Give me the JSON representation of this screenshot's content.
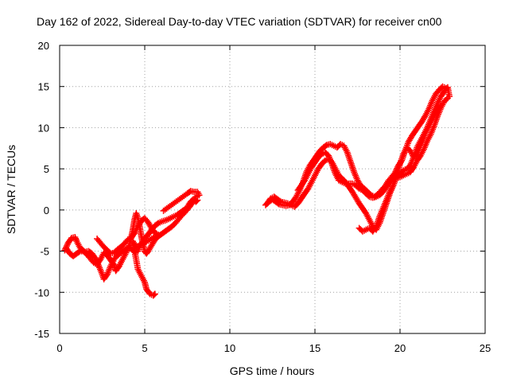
{
  "chart_data": {
    "type": "scatter",
    "title": "Day 162 of 2022, Sidereal Day-to-day VTEC variation (SDTVAR) for receiver cn00",
    "xlabel": "GPS time / hours",
    "ylabel": "SDTVAR / TECUs",
    "xlim": [
      0,
      25
    ],
    "ylim": [
      -15,
      20
    ],
    "x_ticks": [
      "0",
      "5",
      "10",
      "15",
      "20",
      "25"
    ],
    "y_ticks": [
      "-15",
      "-10",
      "-5",
      "0",
      "5",
      "10",
      "15",
      "20"
    ],
    "grid": true,
    "marker": "plus",
    "color": "#ff0000",
    "series": [
      {
        "points": [
          [
            0.3,
            -4.9
          ],
          [
            0.5,
            -4.0
          ],
          [
            0.7,
            -3.4
          ],
          [
            0.9,
            -3.3
          ],
          [
            1.0,
            -3.8
          ],
          [
            1.2,
            -4.6
          ],
          [
            1.5,
            -5.1
          ],
          [
            1.7,
            -5.0
          ],
          [
            1.9,
            -5.3
          ],
          [
            2.1,
            -5.9
          ],
          [
            2.3,
            -6.8
          ],
          [
            2.5,
            -7.8
          ],
          [
            2.6,
            -8.4
          ],
          [
            2.8,
            -7.8
          ],
          [
            3.0,
            -6.8
          ],
          [
            3.2,
            -6.0
          ],
          [
            3.4,
            -5.5
          ],
          [
            3.6,
            -5.2
          ],
          [
            3.8,
            -4.9
          ],
          [
            4.0,
            -4.6
          ],
          [
            4.2,
            -4.7
          ],
          [
            4.4,
            -5.1
          ],
          [
            4.6,
            -5.0
          ],
          [
            4.7,
            -4.4
          ],
          [
            4.9,
            -3.8
          ],
          [
            5.0,
            -3.4
          ],
          [
            5.2,
            -3.0
          ],
          [
            5.4,
            -2.4
          ],
          [
            5.6,
            -1.9
          ],
          [
            5.8,
            -1.6
          ],
          [
            6.0,
            -1.4
          ],
          [
            6.3,
            -1.2
          ],
          [
            6.5,
            -1.0
          ],
          [
            6.7,
            -0.8
          ],
          [
            6.9,
            -0.6
          ],
          [
            7.1,
            -0.3
          ],
          [
            7.3,
            0.0
          ],
          [
            7.5,
            0.3
          ],
          [
            7.6,
            0.7
          ],
          [
            7.7,
            1.0
          ],
          [
            7.8,
            1.2
          ],
          [
            7.9,
            1.3
          ],
          [
            8.0,
            1.0
          ],
          [
            8.1,
            1.2
          ]
        ]
      },
      {
        "points": [
          [
            0.4,
            -4.7
          ],
          [
            0.6,
            -5.3
          ],
          [
            0.8,
            -5.6
          ],
          [
            1.0,
            -5.3
          ],
          [
            1.2,
            -5.0
          ],
          [
            1.4,
            -5.0
          ],
          [
            1.6,
            -5.4
          ],
          [
            1.8,
            -5.9
          ],
          [
            2.0,
            -6.4
          ],
          [
            2.2,
            -6.6
          ],
          [
            2.4,
            -6.0
          ],
          [
            2.6,
            -5.2
          ],
          [
            2.8,
            -5.5
          ],
          [
            3.0,
            -6.1
          ],
          [
            3.2,
            -6.7
          ],
          [
            3.3,
            -7.4
          ],
          [
            3.5,
            -6.8
          ],
          [
            3.7,
            -6.0
          ],
          [
            3.9,
            -5.2
          ],
          [
            4.1,
            -4.3
          ],
          [
            4.2,
            -3.4
          ],
          [
            4.3,
            -2.4
          ],
          [
            4.4,
            -1.2
          ],
          [
            4.5,
            -0.4
          ],
          [
            4.6,
            -1.0
          ],
          [
            4.7,
            -2.0
          ],
          [
            4.8,
            -3.2
          ],
          [
            4.9,
            -4.2
          ],
          [
            5.0,
            -5.0
          ],
          [
            5.1,
            -5.3
          ],
          [
            5.2,
            -5.0
          ],
          [
            5.4,
            -4.3
          ],
          [
            5.6,
            -3.6
          ],
          [
            5.8,
            -3.2
          ],
          [
            6.0,
            -2.9
          ],
          [
            6.2,
            -2.6
          ],
          [
            6.4,
            -2.3
          ],
          [
            6.6,
            -2.0
          ],
          [
            6.8,
            -1.6
          ],
          [
            7.0,
            -1.1
          ],
          [
            7.2,
            -0.6
          ],
          [
            7.4,
            -0.2
          ],
          [
            7.6,
            0.3
          ],
          [
            7.8,
            0.9
          ],
          [
            8.0,
            1.6
          ],
          [
            8.2,
            1.8
          ],
          [
            8.1,
            2.2
          ],
          [
            7.9,
            2.2
          ],
          [
            7.7,
            2.3
          ],
          [
            7.5,
            2.0
          ],
          [
            6.1,
            -0.1
          ]
        ]
      },
      {
        "points": [
          [
            2.2,
            -3.5
          ],
          [
            2.4,
            -4.0
          ],
          [
            2.6,
            -4.5
          ],
          [
            2.8,
            -4.9
          ],
          [
            3.0,
            -5.3
          ],
          [
            3.2,
            -5.2
          ],
          [
            3.4,
            -4.8
          ],
          [
            3.6,
            -4.5
          ],
          [
            3.8,
            -4.1
          ],
          [
            4.0,
            -3.6
          ],
          [
            4.2,
            -3.4
          ],
          [
            4.4,
            -2.8
          ],
          [
            4.6,
            -2.0
          ],
          [
            4.8,
            -1.3
          ],
          [
            5.0,
            -1.0
          ],
          [
            5.2,
            -1.5
          ],
          [
            5.4,
            -2.2
          ],
          [
            5.6,
            -2.8
          ],
          [
            5.8,
            -3.0
          ],
          [
            4.8,
            -4.2
          ],
          [
            4.5,
            -4.5
          ],
          [
            4.3,
            -3.8
          ],
          [
            4.6,
            -7.2
          ],
          [
            4.8,
            -8.0
          ],
          [
            5.0,
            -8.8
          ],
          [
            5.1,
            -9.6
          ],
          [
            5.3,
            -10.2
          ],
          [
            5.5,
            -10.4
          ],
          [
            5.6,
            -10.2
          ]
        ]
      },
      {
        "points": [
          [
            12.1,
            0.6
          ],
          [
            12.3,
            1.0
          ],
          [
            12.5,
            1.3
          ],
          [
            12.7,
            1.0
          ],
          [
            12.9,
            0.7
          ],
          [
            13.1,
            0.6
          ],
          [
            13.3,
            0.5
          ],
          [
            13.5,
            0.6
          ],
          [
            13.7,
            1.0
          ],
          [
            13.9,
            1.6
          ],
          [
            14.1,
            2.4
          ],
          [
            14.3,
            3.4
          ],
          [
            14.5,
            4.6
          ],
          [
            14.7,
            5.4
          ],
          [
            14.9,
            6.0
          ],
          [
            15.1,
            6.6
          ],
          [
            15.3,
            7.2
          ],
          [
            15.5,
            7.6
          ],
          [
            15.7,
            7.9
          ],
          [
            15.9,
            8.0
          ],
          [
            16.1,
            7.8
          ],
          [
            16.3,
            7.6
          ],
          [
            16.5,
            8.0
          ],
          [
            16.7,
            7.8
          ],
          [
            16.9,
            7.0
          ],
          [
            17.1,
            5.8
          ],
          [
            17.3,
            4.6
          ],
          [
            17.5,
            3.6
          ],
          [
            17.7,
            2.9
          ],
          [
            17.9,
            2.6
          ],
          [
            18.1,
            2.2
          ],
          [
            18.3,
            1.8
          ],
          [
            18.5,
            1.6
          ],
          [
            18.7,
            1.9
          ],
          [
            18.9,
            2.4
          ],
          [
            19.1,
            2.8
          ],
          [
            19.3,
            3.5
          ],
          [
            19.5,
            4.0
          ],
          [
            19.7,
            4.5
          ],
          [
            19.9,
            5.4
          ],
          [
            20.1,
            6.0
          ],
          [
            20.3,
            7.2
          ],
          [
            20.5,
            8.3
          ],
          [
            20.7,
            9.0
          ],
          [
            20.9,
            9.6
          ],
          [
            21.1,
            10.2
          ],
          [
            21.3,
            10.8
          ],
          [
            21.5,
            11.5
          ],
          [
            21.7,
            12.3
          ],
          [
            21.9,
            13.3
          ],
          [
            22.1,
            14.1
          ],
          [
            22.3,
            14.6
          ],
          [
            22.5,
            15.0
          ],
          [
            22.7,
            14.8
          ]
        ]
      },
      {
        "points": [
          [
            12.2,
            0.8
          ],
          [
            12.4,
            1.4
          ],
          [
            12.6,
            1.6
          ],
          [
            12.8,
            1.3
          ],
          [
            13.0,
            1.0
          ],
          [
            13.2,
            0.9
          ],
          [
            13.4,
            0.8
          ],
          [
            13.6,
            0.6
          ],
          [
            13.8,
            0.4
          ],
          [
            14.0,
            0.8
          ],
          [
            14.2,
            1.4
          ],
          [
            14.4,
            2.0
          ],
          [
            14.6,
            2.6
          ],
          [
            14.8,
            3.4
          ],
          [
            15.0,
            4.2
          ],
          [
            15.2,
            5.0
          ],
          [
            15.4,
            5.6
          ],
          [
            15.6,
            6.0
          ],
          [
            15.8,
            6.2
          ],
          [
            16.0,
            5.8
          ],
          [
            16.2,
            5.0
          ],
          [
            16.4,
            4.2
          ],
          [
            16.6,
            3.8
          ],
          [
            16.8,
            3.4
          ],
          [
            17.0,
            2.8
          ],
          [
            17.2,
            2.2
          ],
          [
            17.4,
            1.5
          ],
          [
            17.6,
            0.8
          ],
          [
            17.8,
            0.2
          ],
          [
            18.0,
            -0.4
          ],
          [
            18.2,
            -1.2
          ],
          [
            18.4,
            -2.0
          ],
          [
            18.6,
            -2.4
          ],
          [
            18.8,
            -1.6
          ],
          [
            19.0,
            -0.4
          ],
          [
            19.2,
            0.8
          ],
          [
            19.4,
            2.0
          ],
          [
            19.6,
            3.0
          ],
          [
            19.8,
            4.0
          ],
          [
            20.0,
            4.4
          ],
          [
            20.2,
            4.8
          ],
          [
            20.4,
            5.0
          ],
          [
            20.6,
            5.4
          ],
          [
            20.8,
            6.4
          ],
          [
            21.0,
            7.6
          ],
          [
            21.2,
            8.4
          ],
          [
            21.4,
            9.2
          ],
          [
            21.6,
            10.0
          ],
          [
            21.8,
            11.0
          ],
          [
            22.0,
            12.0
          ],
          [
            22.2,
            13.0
          ],
          [
            22.4,
            13.8
          ],
          [
            22.6,
            14.4
          ],
          [
            22.8,
            14.9
          ],
          [
            22.9,
            13.8
          ]
        ]
      },
      {
        "points": [
          [
            14.0,
            2.4
          ],
          [
            14.2,
            3.0
          ],
          [
            14.4,
            3.6
          ],
          [
            14.6,
            4.4
          ],
          [
            14.8,
            5.2
          ],
          [
            15.0,
            5.8
          ],
          [
            15.2,
            6.4
          ],
          [
            15.4,
            6.8
          ],
          [
            15.6,
            7.0
          ],
          [
            15.8,
            6.6
          ],
          [
            16.0,
            5.6
          ],
          [
            16.2,
            4.4
          ],
          [
            16.4,
            3.6
          ],
          [
            16.6,
            3.4
          ],
          [
            16.8,
            3.2
          ],
          [
            17.0,
            3.2
          ],
          [
            17.2,
            3.2
          ],
          [
            17.4,
            3.0
          ],
          [
            17.6,
            2.6
          ],
          [
            17.8,
            2.4
          ],
          [
            18.0,
            2.0
          ],
          [
            18.2,
            1.6
          ],
          [
            18.4,
            1.5
          ],
          [
            18.6,
            1.6
          ],
          [
            18.8,
            1.8
          ],
          [
            19.0,
            2.2
          ],
          [
            19.2,
            2.8
          ],
          [
            19.4,
            3.4
          ],
          [
            19.6,
            3.8
          ],
          [
            19.8,
            3.9
          ],
          [
            20.0,
            4.0
          ],
          [
            20.2,
            4.2
          ],
          [
            20.4,
            4.4
          ],
          [
            20.6,
            4.6
          ],
          [
            20.8,
            5.2
          ],
          [
            21.0,
            6.0
          ],
          [
            21.2,
            6.6
          ],
          [
            21.4,
            7.4
          ],
          [
            21.6,
            8.4
          ],
          [
            21.8,
            9.2
          ],
          [
            22.0,
            10.2
          ],
          [
            22.2,
            11.4
          ],
          [
            22.4,
            12.4
          ],
          [
            22.6,
            13.2
          ],
          [
            22.8,
            13.6
          ]
        ]
      },
      {
        "points": [
          [
            17.6,
            -2.2
          ],
          [
            17.8,
            -2.6
          ],
          [
            18.0,
            -2.4
          ],
          [
            18.2,
            -2.2
          ],
          [
            18.4,
            -2.6
          ],
          [
            18.6,
            -2.0
          ],
          [
            18.8,
            -0.8
          ],
          [
            19.0,
            0.2
          ],
          [
            19.2,
            1.2
          ],
          [
            19.4,
            2.2
          ],
          [
            19.6,
            3.0
          ],
          [
            19.8,
            4.2
          ],
          [
            20.0,
            5.6
          ],
          [
            20.2,
            6.8
          ],
          [
            20.4,
            7.6
          ],
          [
            20.6,
            7.2
          ],
          [
            20.8,
            6.4
          ],
          [
            21.0,
            6.8
          ],
          [
            21.2,
            7.8
          ],
          [
            21.4,
            8.8
          ],
          [
            21.6,
            9.8
          ],
          [
            21.8,
            10.6
          ],
          [
            22.0,
            11.4
          ],
          [
            22.2,
            12.2
          ],
          [
            22.4,
            12.8
          ]
        ]
      }
    ]
  }
}
